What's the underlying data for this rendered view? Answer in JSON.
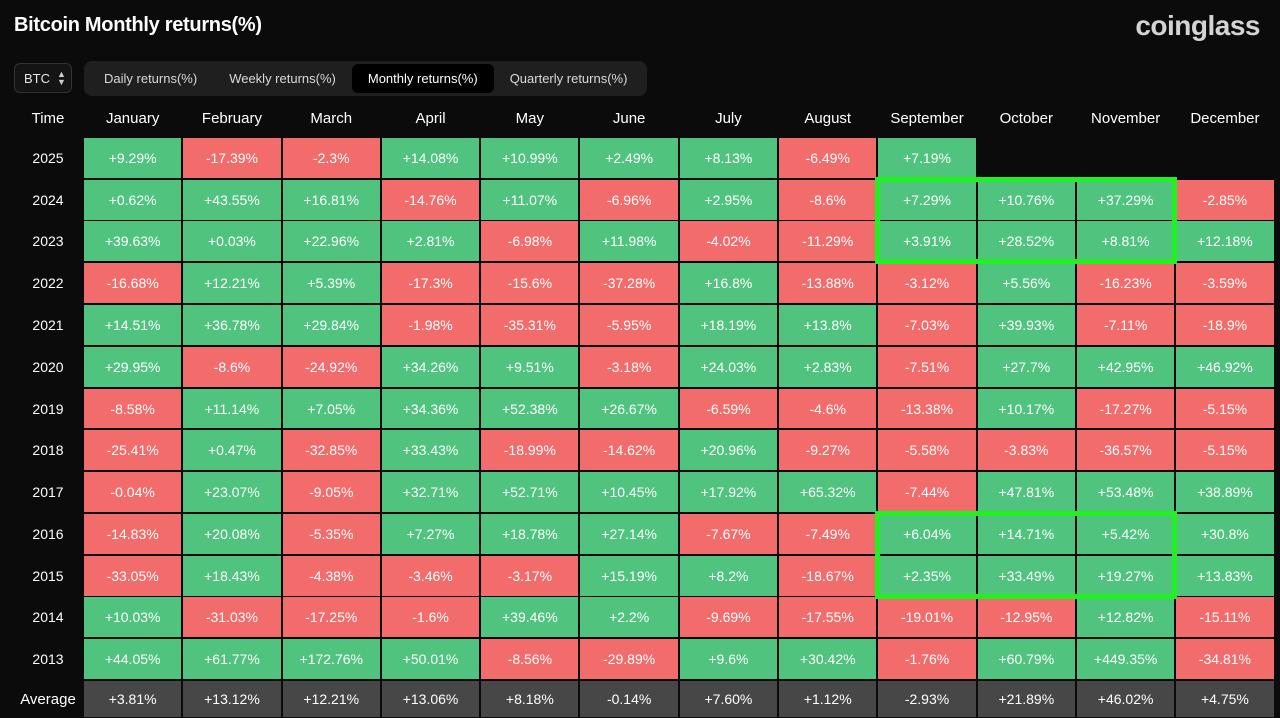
{
  "header": {
    "title": "Bitcoin Monthly returns(%)",
    "brand": "coinglass",
    "asset": "BTC",
    "tabs": [
      "Daily returns(%)",
      "Weekly returns(%)",
      "Monthly returns(%)",
      "Quarterly returns(%)"
    ],
    "active_tab": 2
  },
  "colors": {
    "positive": "#50c37f",
    "negative": "#f36c6c",
    "average_bg": "#474747",
    "highlight": "#22f022",
    "background": "#0b0b0b"
  },
  "chart_data": {
    "type": "heatmap",
    "row_header": "Time",
    "columns": [
      "January",
      "February",
      "March",
      "April",
      "May",
      "June",
      "July",
      "August",
      "September",
      "October",
      "November",
      "December"
    ],
    "rows": [
      {
        "label": "2025",
        "values": [
          "+9.29%",
          "-17.39%",
          "-2.3%",
          "+14.08%",
          "+10.99%",
          "+2.49%",
          "+8.13%",
          "-6.49%",
          "+7.19%",
          "",
          "",
          ""
        ]
      },
      {
        "label": "2024",
        "values": [
          "+0.62%",
          "+43.55%",
          "+16.81%",
          "-14.76%",
          "+11.07%",
          "-6.96%",
          "+2.95%",
          "-8.6%",
          "+7.29%",
          "+10.76%",
          "+37.29%",
          "-2.85%"
        ]
      },
      {
        "label": "2023",
        "values": [
          "+39.63%",
          "+0.03%",
          "+22.96%",
          "+2.81%",
          "-6.98%",
          "+11.98%",
          "-4.02%",
          "-11.29%",
          "+3.91%",
          "+28.52%",
          "+8.81%",
          "+12.18%"
        ]
      },
      {
        "label": "2022",
        "values": [
          "-16.68%",
          "+12.21%",
          "+5.39%",
          "-17.3%",
          "-15.6%",
          "-37.28%",
          "+16.8%",
          "-13.88%",
          "-3.12%",
          "+5.56%",
          "-16.23%",
          "-3.59%"
        ]
      },
      {
        "label": "2021",
        "values": [
          "+14.51%",
          "+36.78%",
          "+29.84%",
          "-1.98%",
          "-35.31%",
          "-5.95%",
          "+18.19%",
          "+13.8%",
          "-7.03%",
          "+39.93%",
          "-7.11%",
          "-18.9%"
        ]
      },
      {
        "label": "2020",
        "values": [
          "+29.95%",
          "-8.6%",
          "-24.92%",
          "+34.26%",
          "+9.51%",
          "-3.18%",
          "+24.03%",
          "+2.83%",
          "-7.51%",
          "+27.7%",
          "+42.95%",
          "+46.92%"
        ]
      },
      {
        "label": "2019",
        "values": [
          "-8.58%",
          "+11.14%",
          "+7.05%",
          "+34.36%",
          "+52.38%",
          "+26.67%",
          "-6.59%",
          "-4.6%",
          "-13.38%",
          "+10.17%",
          "-17.27%",
          "-5.15%"
        ]
      },
      {
        "label": "2018",
        "values": [
          "-25.41%",
          "+0.47%",
          "-32.85%",
          "+33.43%",
          "-18.99%",
          "-14.62%",
          "+20.96%",
          "-9.27%",
          "-5.58%",
          "-3.83%",
          "-36.57%",
          "-5.15%"
        ]
      },
      {
        "label": "2017",
        "values": [
          "-0.04%",
          "+23.07%",
          "-9.05%",
          "+32.71%",
          "+52.71%",
          "+10.45%",
          "+17.92%",
          "+65.32%",
          "-7.44%",
          "+47.81%",
          "+53.48%",
          "+38.89%"
        ]
      },
      {
        "label": "2016",
        "values": [
          "-14.83%",
          "+20.08%",
          "-5.35%",
          "+7.27%",
          "+18.78%",
          "+27.14%",
          "-7.67%",
          "-7.49%",
          "+6.04%",
          "+14.71%",
          "+5.42%",
          "+30.8%"
        ]
      },
      {
        "label": "2015",
        "values": [
          "-33.05%",
          "+18.43%",
          "-4.38%",
          "-3.46%",
          "-3.17%",
          "+15.19%",
          "+8.2%",
          "-18.67%",
          "+2.35%",
          "+33.49%",
          "+19.27%",
          "+13.83%"
        ]
      },
      {
        "label": "2014",
        "values": [
          "+10.03%",
          "-31.03%",
          "-17.25%",
          "-1.6%",
          "+39.46%",
          "+2.2%",
          "-9.69%",
          "-17.55%",
          "-19.01%",
          "-12.95%",
          "+12.82%",
          "-15.11%"
        ]
      },
      {
        "label": "2013",
        "values": [
          "+44.05%",
          "+61.77%",
          "+172.76%",
          "+50.01%",
          "-8.56%",
          "-29.89%",
          "+9.6%",
          "+30.42%",
          "-1.76%",
          "+60.79%",
          "+449.35%",
          "-34.81%"
        ]
      }
    ],
    "average": {
      "label": "Average",
      "values": [
        "+3.81%",
        "+13.12%",
        "+12.21%",
        "+13.06%",
        "+8.18%",
        "-0.14%",
        "+7.60%",
        "+1.12%",
        "-2.93%",
        "+21.89%",
        "+46.02%",
        "+4.75%"
      ]
    },
    "highlights": [
      {
        "rows": [
          "2024",
          "2023"
        ],
        "columns": [
          "September",
          "October",
          "November"
        ]
      },
      {
        "rows": [
          "2016",
          "2015"
        ],
        "columns": [
          "September",
          "October",
          "November"
        ]
      }
    ]
  }
}
